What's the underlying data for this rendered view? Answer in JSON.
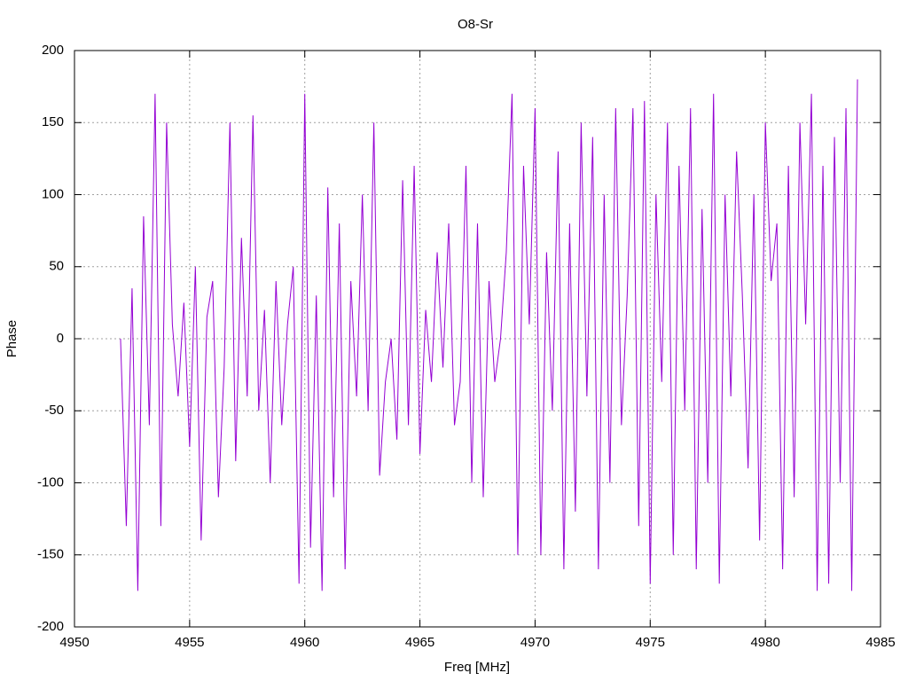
{
  "chart_data": {
    "type": "line",
    "title": "O8-Sr",
    "x_label": "Freq [MHz]",
    "y_label": "Phase",
    "color": "#9400d3",
    "grid": true,
    "xlim": [
      4950,
      4985
    ],
    "ylim": [
      -200,
      200
    ],
    "xticks": [
      4950,
      4955,
      4960,
      4965,
      4970,
      4975,
      4980,
      4985
    ],
    "yticks": [
      -200,
      -150,
      -100,
      -50,
      0,
      50,
      100,
      150,
      200
    ],
    "x": [
      4952,
      4952.25,
      4952.5,
      4952.75,
      4953,
      4953.25,
      4953.5,
      4953.75,
      4954,
      4954.25,
      4954.5,
      4954.75,
      4955,
      4955.25,
      4955.5,
      4955.75,
      4956,
      4956.25,
      4956.5,
      4956.75,
      4957,
      4957.25,
      4957.5,
      4957.75,
      4958,
      4958.25,
      4958.5,
      4958.75,
      4959,
      4959.25,
      4959.5,
      4959.75,
      4960,
      4960.25,
      4960.5,
      4960.75,
      4961,
      4961.25,
      4961.5,
      4961.75,
      4962,
      4962.25,
      4962.5,
      4962.75,
      4963,
      4963.25,
      4963.5,
      4963.75,
      4964,
      4964.25,
      4964.5,
      4964.75,
      4965,
      4965.25,
      4965.5,
      4965.75,
      4966,
      4966.25,
      4966.5,
      4966.75,
      4967,
      4967.25,
      4967.5,
      4967.75,
      4968,
      4968.25,
      4968.5,
      4968.75,
      4969,
      4969.25,
      4969.5,
      4969.75,
      4970,
      4970.25,
      4970.5,
      4970.75,
      4971,
      4971.25,
      4971.5,
      4971.75,
      4972,
      4972.25,
      4972.5,
      4972.75,
      4973,
      4973.25,
      4973.5,
      4973.75,
      4974,
      4974.25,
      4974.5,
      4974.75,
      4975,
      4975.25,
      4975.5,
      4975.75,
      4976,
      4976.25,
      4976.5,
      4976.75,
      4977,
      4977.25,
      4977.5,
      4977.75,
      4978,
      4978.25,
      4978.5,
      4978.75,
      4979,
      4979.25,
      4979.5,
      4979.75,
      4980,
      4980.25,
      4980.5,
      4980.75,
      4981,
      4981.25,
      4981.5,
      4981.75,
      4982,
      4982.25,
      4982.5,
      4982.75,
      4983,
      4983.25,
      4983.5,
      4983.75,
      4984
    ],
    "values": [
      0,
      -130,
      35,
      -175,
      85,
      -60,
      170,
      -130,
      150,
      10,
      -40,
      25,
      -75,
      50,
      -140,
      15,
      40,
      -110,
      -20,
      150,
      -85,
      70,
      -40,
      155,
      -50,
      20,
      -100,
      40,
      -60,
      10,
      50,
      -170,
      170,
      -145,
      30,
      -175,
      105,
      -110,
      80,
      -160,
      40,
      -40,
      100,
      -50,
      150,
      -95,
      -30,
      0,
      -70,
      110,
      -60,
      120,
      -80,
      20,
      -30,
      60,
      -20,
      80,
      -60,
      -30,
      120,
      -100,
      80,
      -110,
      40,
      -30,
      0,
      60,
      170,
      -150,
      120,
      10,
      160,
      -150,
      60,
      -50,
      130,
      -160,
      80,
      -120,
      150,
      -40,
      140,
      -160,
      100,
      -100,
      160,
      -60,
      30,
      160,
      -130,
      165,
      -170,
      100,
      -30,
      150,
      -150,
      120,
      -50,
      160,
      -160,
      90,
      -100,
      170,
      -170,
      100,
      -40,
      130,
      30,
      -90,
      100,
      -140,
      150,
      40,
      80,
      -160,
      120,
      -110,
      150,
      10,
      170,
      -175,
      120,
      -170,
      140,
      -100,
      160,
      -175,
      180
    ]
  }
}
